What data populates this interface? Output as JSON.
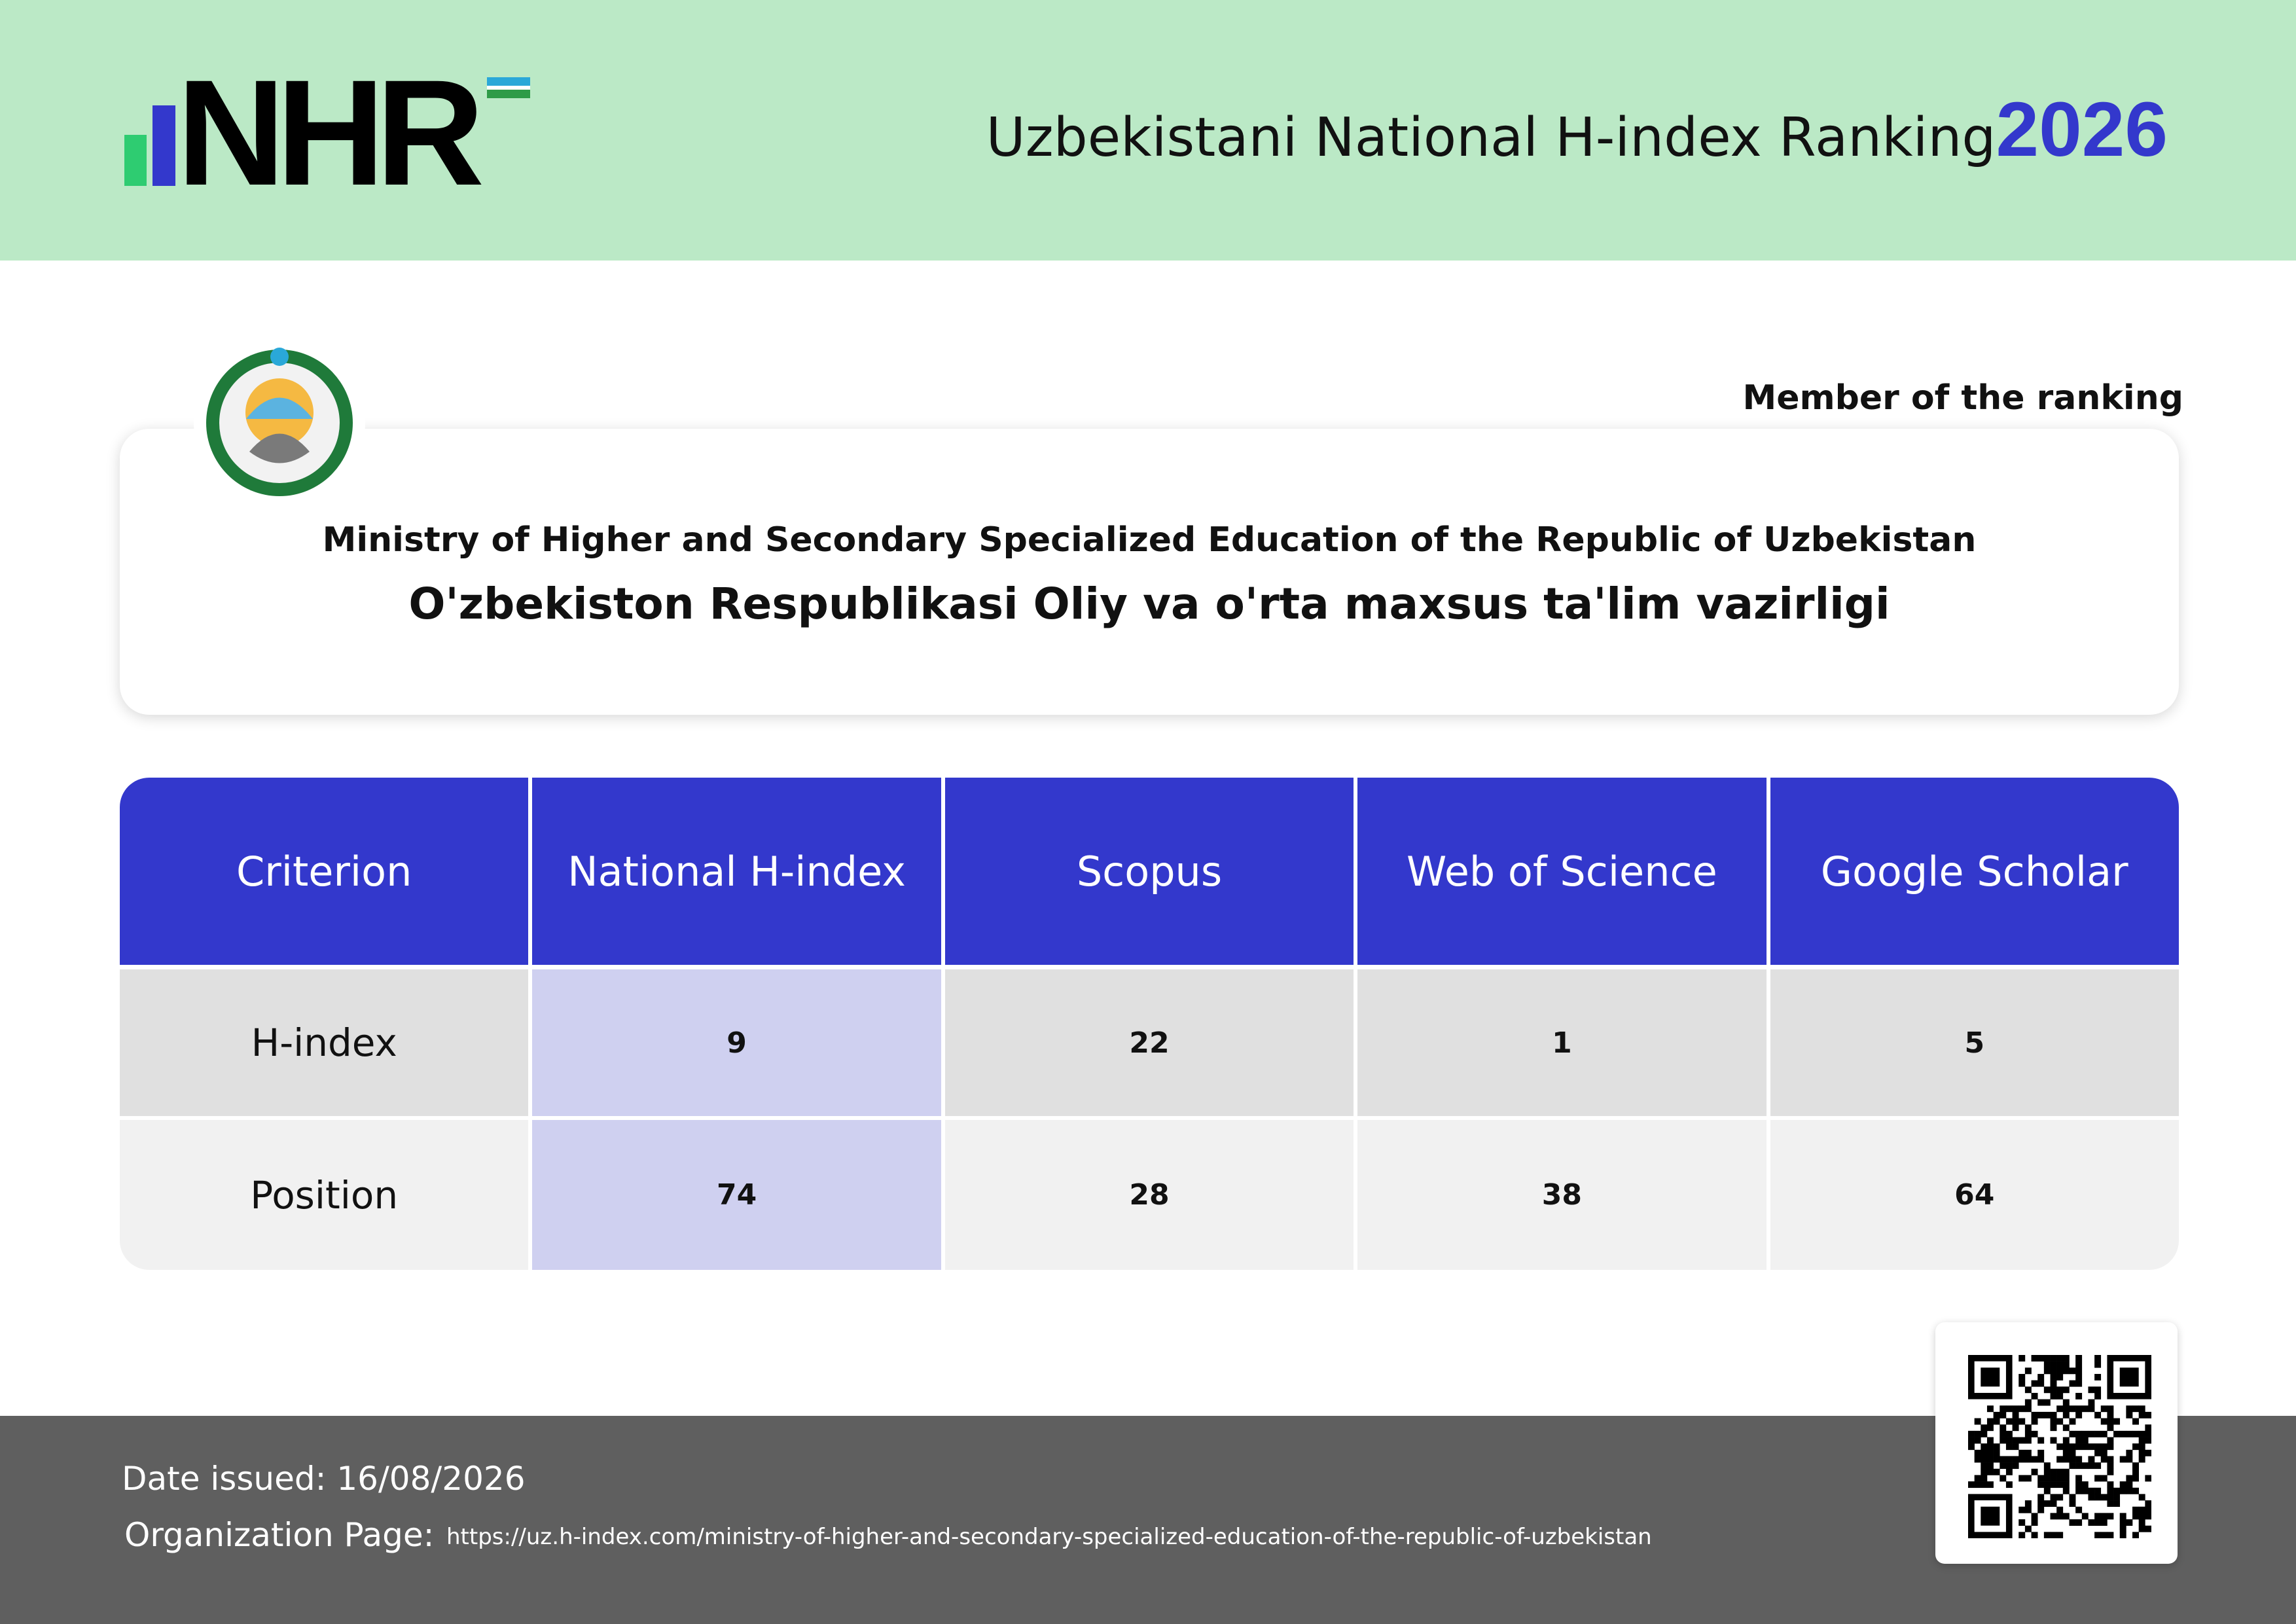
{
  "header": {
    "logo": "NHR",
    "title": "Uzbekistani National H-index Ranking",
    "year": "2026"
  },
  "card": {
    "badge": "Member of the ranking",
    "name_en": "Ministry of Higher and Secondary Specialized Education of the Republic of Uzbekistan",
    "name_uz": "O'zbekiston Respublikasi Oliy va o'rta maxsus ta'lim vazirligi"
  },
  "table": {
    "columns": [
      "Criterion",
      "National H-index",
      "Scopus",
      "Web of Science",
      "Google Scholar"
    ],
    "rows": [
      [
        "H-index",
        9,
        22,
        1,
        5
      ],
      [
        "Position",
        74,
        28,
        38,
        64
      ]
    ]
  },
  "footer": {
    "date": "Date issued: 16/08/2026",
    "page_label": "Organization Page:",
    "url": "https://uz.h-index.com/ministry-of-higher-and-secondary-specialized-education-of-the-republic-of-uzbekistan"
  }
}
